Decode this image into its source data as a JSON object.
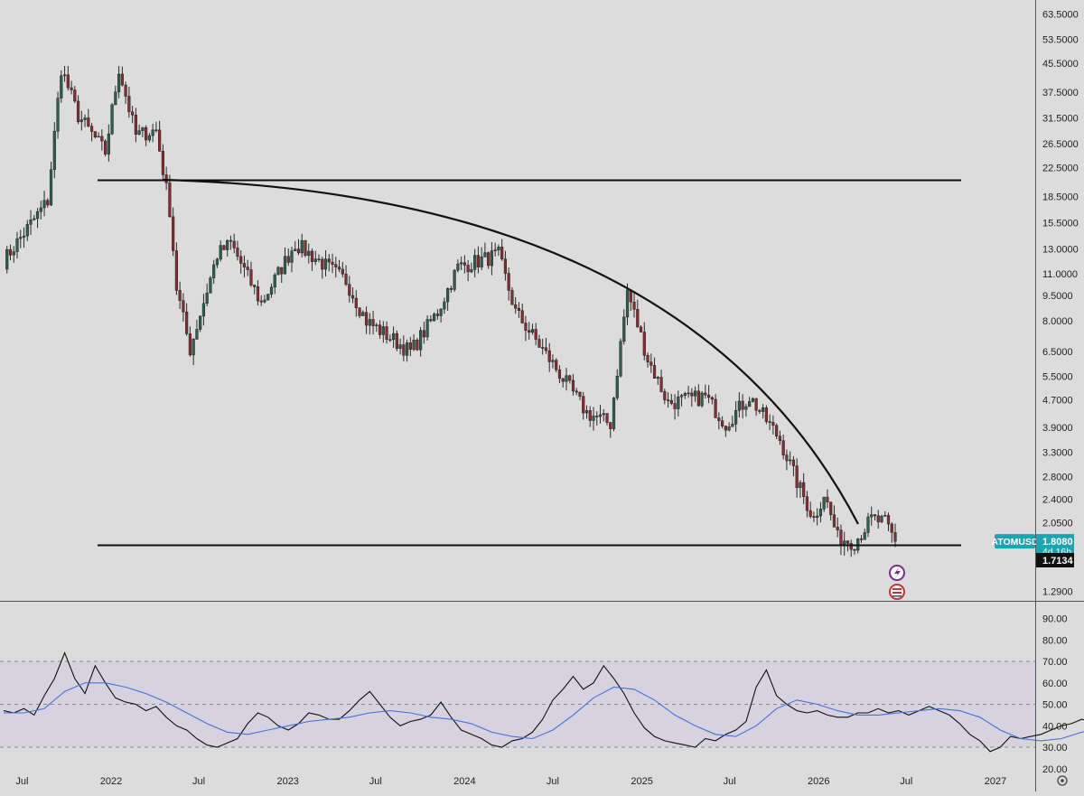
{
  "app": {
    "symbol": "ATOMUSD"
  },
  "colors": {
    "background": "#dcdcdc",
    "candle_up": "#2f5f4f",
    "candle_down": "#8a2c30",
    "wick": "#2a2a2a",
    "rsi": "#111111",
    "rsi_ma": "#4a6fd8",
    "rsi_band": "#d7d2e0",
    "price_tag": "#1aa5b0",
    "low_tag": "#111111",
    "marker_purple": "#7a2d8c",
    "marker_red": "#c83232"
  },
  "price_axis": {
    "ticks": [
      "63.5000",
      "53.5000",
      "45.5000",
      "37.5000",
      "31.5000",
      "26.5000",
      "22.5000",
      "18.5000",
      "15.5000",
      "13.0000",
      "11.0000",
      "9.5000",
      "8.0000",
      "6.5000",
      "5.5000",
      "4.7000",
      "3.9000",
      "3.3000",
      "2.8000",
      "2.4000",
      "2.0500",
      "1.2900"
    ],
    "tick_values": [
      63.5,
      53.5,
      45.5,
      37.5,
      31.5,
      26.5,
      22.5,
      18.5,
      15.5,
      13.0,
      11.0,
      9.5,
      8.0,
      6.5,
      5.5,
      4.7,
      3.9,
      3.3,
      2.8,
      2.4,
      2.05,
      1.29
    ],
    "scale": "log"
  },
  "rsi_axis": {
    "ticks": [
      "90.00",
      "80.00",
      "70.00",
      "60.00",
      "50.00",
      "40.00",
      "30.00",
      "20.00"
    ],
    "tick_values": [
      90,
      80,
      70,
      60,
      50,
      40,
      30,
      20
    ],
    "upper_band": 70,
    "middle": 50,
    "lower_band": 30
  },
  "time_axis": {
    "labels": [
      "Jul",
      "2022",
      "Jul",
      "2023",
      "Jul",
      "2024",
      "Jul",
      "2025",
      "Jul",
      "2026",
      "Jul",
      "2027"
    ],
    "label_dates": [
      "2021-07-01",
      "2022-01-01",
      "2022-07-01",
      "2023-01-01",
      "2023-07-01",
      "2024-01-01",
      "2024-07-01",
      "2025-01-01",
      "2025-07-01",
      "2026-01-01",
      "2026-07-01",
      "2027-01-01"
    ]
  },
  "price_tag": {
    "symbol": "ATOMUSD",
    "value": "1.8080",
    "countdown": "4d 16h"
  },
  "low_tag": {
    "value": "1.7134"
  },
  "markers": {
    "first": "lightning-icon",
    "second": "flag-icon"
  },
  "chart_data": [
    {
      "type": "candlestick",
      "title": "",
      "x_start": "2021-05-24",
      "x_end": "2026-06-08",
      "interval": "1W",
      "y_scale": "log",
      "ylim": [
        1.1,
        70
      ],
      "key_points": [
        {
          "x": "2021-05-24",
          "y": 12.0
        },
        {
          "x": "2021-08-23",
          "y": 18.0
        },
        {
          "x": "2021-09-20",
          "y": 44.0
        },
        {
          "x": "2021-10-25",
          "y": 32.0
        },
        {
          "x": "2021-12-20",
          "y": 25.0
        },
        {
          "x": "2022-01-17",
          "y": 44.0
        },
        {
          "x": "2022-02-21",
          "y": 28.0
        },
        {
          "x": "2022-04-04",
          "y": 29.0
        },
        {
          "x": "2022-05-02",
          "y": 17.0
        },
        {
          "x": "2022-05-16",
          "y": 10.0
        },
        {
          "x": "2022-06-13",
          "y": 6.6
        },
        {
          "x": "2022-08-08",
          "y": 12.5
        },
        {
          "x": "2022-09-05",
          "y": 13.5
        },
        {
          "x": "2022-11-07",
          "y": 9.0
        },
        {
          "x": "2023-01-16",
          "y": 13.5
        },
        {
          "x": "2023-05-01",
          "y": 10.5
        },
        {
          "x": "2023-06-12",
          "y": 8.0
        },
        {
          "x": "2023-09-11",
          "y": 6.5
        },
        {
          "x": "2023-11-06",
          "y": 8.5
        },
        {
          "x": "2023-12-18",
          "y": 11.5
        },
        {
          "x": "2024-03-11",
          "y": 12.5
        },
        {
          "x": "2024-04-15",
          "y": 8.5
        },
        {
          "x": "2024-07-08",
          "y": 5.8
        },
        {
          "x": "2024-09-09",
          "y": 4.3
        },
        {
          "x": "2024-10-28",
          "y": 4.0
        },
        {
          "x": "2024-12-02",
          "y": 9.8
        },
        {
          "x": "2025-01-13",
          "y": 6.2
        },
        {
          "x": "2025-02-24",
          "y": 4.6
        },
        {
          "x": "2025-05-12",
          "y": 4.8
        },
        {
          "x": "2025-06-23",
          "y": 4.0
        },
        {
          "x": "2025-08-11",
          "y": 4.8
        },
        {
          "x": "2025-10-13",
          "y": 3.6
        },
        {
          "x": "2025-11-17",
          "y": 2.7
        },
        {
          "x": "2025-12-22",
          "y": 2.1
        },
        {
          "x": "2026-01-12",
          "y": 2.5
        },
        {
          "x": "2026-02-09",
          "y": 1.85
        },
        {
          "x": "2026-03-16",
          "y": 1.8
        },
        {
          "x": "2026-04-20",
          "y": 2.1
        },
        {
          "x": "2026-05-18",
          "y": 2.05
        },
        {
          "x": "2026-06-08",
          "y": 1.808
        }
      ]
    },
    {
      "type": "line",
      "title": "",
      "x_start": "2021-05-24",
      "x_end": "2026-06-08",
      "ylim": [
        20,
        90
      ],
      "series": [
        {
          "points": [
            [
              0,
              47
            ],
            [
              3,
              46
            ],
            [
              6,
              48
            ],
            [
              9,
              45
            ],
            [
              12,
              54
            ],
            [
              15,
              62
            ],
            [
              18,
              74
            ],
            [
              21,
              62
            ],
            [
              24,
              55
            ],
            [
              27,
              68
            ],
            [
              30,
              60
            ],
            [
              33,
              53
            ],
            [
              36,
              51
            ],
            [
              39,
              50
            ],
            [
              42,
              47
            ],
            [
              45,
              49
            ],
            [
              48,
              44
            ],
            [
              51,
              40
            ],
            [
              54,
              38
            ],
            [
              57,
              34
            ],
            [
              60,
              31
            ],
            [
              63,
              30
            ],
            [
              66,
              32
            ],
            [
              69,
              34
            ],
            [
              72,
              41
            ],
            [
              75,
              46
            ],
            [
              78,
              44
            ],
            [
              81,
              40
            ],
            [
              84,
              38
            ],
            [
              87,
              41
            ],
            [
              90,
              46
            ],
            [
              93,
              45
            ],
            [
              96,
              43
            ],
            [
              99,
              43
            ],
            [
              102,
              47
            ],
            [
              105,
              52
            ],
            [
              108,
              56
            ],
            [
              111,
              50
            ],
            [
              114,
              44
            ],
            [
              117,
              40
            ],
            [
              120,
              42
            ],
            [
              123,
              43
            ],
            [
              126,
              45
            ],
            [
              129,
              51
            ],
            [
              132,
              44
            ],
            [
              135,
              38
            ],
            [
              138,
              36
            ],
            [
              141,
              34
            ],
            [
              144,
              31
            ],
            [
              147,
              30
            ],
            [
              150,
              33
            ],
            [
              153,
              34
            ],
            [
              156,
              37
            ],
            [
              159,
              43
            ],
            [
              162,
              52
            ],
            [
              165,
              57
            ],
            [
              168,
              63
            ],
            [
              171,
              57
            ],
            [
              174,
              60
            ],
            [
              177,
              68
            ],
            [
              180,
              62
            ],
            [
              183,
              55
            ],
            [
              186,
              46
            ],
            [
              189,
              39
            ],
            [
              192,
              35
            ],
            [
              195,
              33
            ],
            [
              198,
              32
            ],
            [
              201,
              31
            ],
            [
              204,
              30
            ],
            [
              207,
              34
            ],
            [
              210,
              33
            ],
            [
              213,
              36
            ],
            [
              216,
              38
            ],
            [
              219,
              42
            ],
            [
              222,
              58
            ],
            [
              225,
              66
            ],
            [
              228,
              54
            ],
            [
              231,
              50
            ],
            [
              234,
              47
            ],
            [
              237,
              46
            ],
            [
              240,
              47
            ],
            [
              243,
              45
            ],
            [
              246,
              44
            ],
            [
              249,
              44
            ],
            [
              252,
              46
            ],
            [
              255,
              46
            ],
            [
              258,
              48
            ],
            [
              261,
              46
            ],
            [
              264,
              47
            ],
            [
              267,
              45
            ],
            [
              270,
              47
            ],
            [
              273,
              49
            ],
            [
              276,
              47
            ],
            [
              279,
              45
            ],
            [
              282,
              41
            ],
            [
              285,
              36
            ],
            [
              288,
              33
            ],
            [
              291,
              28
            ],
            [
              294,
              30
            ],
            [
              297,
              35
            ],
            [
              300,
              34
            ],
            [
              303,
              35
            ],
            [
              306,
              36
            ],
            [
              309,
              38
            ],
            [
              312,
              40
            ],
            [
              315,
              41
            ],
            [
              318,
              43
            ],
            [
              321,
              42
            ],
            [
              324,
              40
            ]
          ]
        },
        {
          "points": [
            [
              0,
              46
            ],
            [
              6,
              46
            ],
            [
              12,
              48
            ],
            [
              18,
              56
            ],
            [
              24,
              60
            ],
            [
              30,
              60
            ],
            [
              36,
              58
            ],
            [
              42,
              55
            ],
            [
              48,
              51
            ],
            [
              54,
              46
            ],
            [
              60,
              41
            ],
            [
              66,
              37
            ],
            [
              72,
              36
            ],
            [
              78,
              38
            ],
            [
              84,
              40
            ],
            [
              90,
              42
            ],
            [
              96,
              43
            ],
            [
              102,
              44
            ],
            [
              108,
              46
            ],
            [
              114,
              47
            ],
            [
              120,
              46
            ],
            [
              126,
              44
            ],
            [
              132,
              43
            ],
            [
              138,
              41
            ],
            [
              144,
              37
            ],
            [
              150,
              35
            ],
            [
              156,
              34
            ],
            [
              162,
              38
            ],
            [
              168,
              45
            ],
            [
              174,
              53
            ],
            [
              180,
              58
            ],
            [
              186,
              57
            ],
            [
              192,
              52
            ],
            [
              198,
              45
            ],
            [
              204,
              40
            ],
            [
              210,
              36
            ],
            [
              216,
              35
            ],
            [
              222,
              40
            ],
            [
              228,
              48
            ],
            [
              234,
              52
            ],
            [
              240,
              50
            ],
            [
              246,
              47
            ],
            [
              252,
              45
            ],
            [
              258,
              45
            ],
            [
              264,
              46
            ],
            [
              270,
              47
            ],
            [
              276,
              48
            ],
            [
              282,
              47
            ],
            [
              288,
              44
            ],
            [
              294,
              38
            ],
            [
              300,
              34
            ],
            [
              306,
              33
            ],
            [
              312,
              34
            ],
            [
              318,
              37
            ],
            [
              324,
              39
            ]
          ]
        }
      ]
    }
  ]
}
